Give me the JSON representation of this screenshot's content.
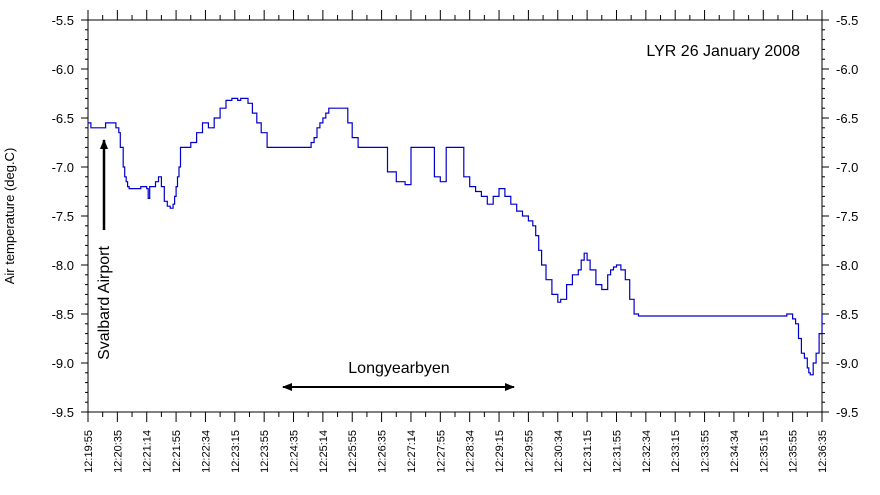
{
  "chart_data": {
    "type": "line",
    "title": "LYR 26 January 2008",
    "ylabel": "Air temperature (deg.C)",
    "xlabel": "",
    "ylim": [
      -9.5,
      -5.5
    ],
    "y_ticks": [
      "-5.5",
      "-6.0",
      "-6.5",
      "-7.0",
      "-7.5",
      "-8.0",
      "-8.5",
      "-9.0",
      "-9.5"
    ],
    "x_tick_labels": [
      "12:19:55",
      "12:20:35",
      "12:21:14",
      "12:21:55",
      "12:22:34",
      "12:23:15",
      "12:23:55",
      "12:24:35",
      "12:25:14",
      "12:25:55",
      "12:26:35",
      "12:27:14",
      "12:27:55",
      "12:28:34",
      "12:29:15",
      "12:29:55",
      "12:30:34",
      "12:31:15",
      "12:31:55",
      "12:32:34",
      "12:33:15",
      "12:33:55",
      "12:34:34",
      "12:35:15",
      "12:35:55",
      "12:36:35"
    ],
    "grid": false,
    "series": [
      {
        "color": "#0000cc",
        "x": [
          0.0,
          0.05,
          0.1,
          0.25,
          0.4,
          0.6,
          0.75,
          0.85,
          0.95,
          1.05,
          1.1,
          1.15,
          1.2,
          1.25,
          1.3,
          1.35,
          1.4,
          1.5,
          1.6,
          1.7,
          1.8,
          1.9,
          2.0,
          2.05,
          2.1,
          2.2,
          2.3,
          2.4,
          2.5,
          2.6,
          2.7,
          2.8,
          2.9,
          2.95,
          3.0,
          3.05,
          3.1,
          3.15,
          3.2,
          3.25,
          3.35,
          3.5,
          3.7,
          3.9,
          4.1,
          4.3,
          4.5,
          4.7,
          4.9,
          5.0,
          5.1,
          5.2,
          5.3,
          5.45,
          5.6,
          5.75,
          5.9,
          6.1,
          6.3,
          6.5,
          6.7,
          6.9,
          7.1,
          7.25,
          7.4,
          7.5,
          7.6,
          7.7,
          7.8,
          7.9,
          8.0,
          8.1,
          8.2,
          8.3,
          8.4,
          8.55,
          8.7,
          8.85,
          9.0,
          9.2,
          9.4,
          9.6,
          9.8,
          10.0,
          10.1,
          10.2,
          10.5,
          10.8,
          11.0,
          11.2,
          11.4,
          11.6,
          11.8,
          12.0,
          12.2,
          12.4,
          12.6,
          12.8,
          13.0,
          13.2,
          13.4,
          13.6,
          13.8,
          14.0,
          14.2,
          14.4,
          14.6,
          14.8,
          15.0,
          15.15,
          15.25,
          15.35,
          15.45,
          15.6,
          15.8,
          16.0,
          16.1,
          16.3,
          16.5,
          16.7,
          16.8,
          16.9,
          17.0,
          17.1,
          17.3,
          17.5,
          17.7,
          17.8,
          17.9,
          18.0,
          18.15,
          18.3,
          18.45,
          18.6,
          18.75,
          18.9,
          19.0,
          19.1,
          19.25,
          19.4,
          19.55,
          19.7,
          19.85,
          20.0,
          20.1,
          20.2,
          20.3,
          20.4,
          20.5,
          20.6,
          20.7,
          20.8,
          20.9,
          21.0,
          21.1,
          21.2,
          21.3,
          21.4,
          21.5,
          21.6,
          21.7,
          21.8,
          21.9,
          22.0,
          22.1,
          22.2,
          22.3,
          22.4,
          22.5,
          22.6,
          22.7,
          22.8,
          22.9,
          23.0,
          23.2,
          23.4,
          23.6,
          23.8,
          24.0,
          24.1,
          24.2,
          24.3,
          24.4,
          24.5,
          24.55,
          24.6,
          24.7,
          24.8,
          24.9,
          25.0
        ],
        "y": [
          -6.55,
          -6.55,
          -6.6,
          -6.6,
          -6.6,
          -6.55,
          -6.55,
          -6.55,
          -6.6,
          -6.65,
          -6.8,
          -6.8,
          -7.0,
          -7.1,
          -7.15,
          -7.2,
          -7.22,
          -7.22,
          -7.22,
          -7.22,
          -7.2,
          -7.2,
          -7.22,
          -7.32,
          -7.2,
          -7.2,
          -7.15,
          -7.1,
          -7.2,
          -7.35,
          -7.4,
          -7.42,
          -7.38,
          -7.3,
          -7.2,
          -7.1,
          -7.0,
          -6.8,
          -6.8,
          -6.8,
          -6.8,
          -6.75,
          -6.65,
          -6.55,
          -6.6,
          -6.5,
          -6.4,
          -6.32,
          -6.3,
          -6.3,
          -6.32,
          -6.3,
          -6.3,
          -6.35,
          -6.45,
          -6.55,
          -6.65,
          -6.8,
          -6.8,
          -6.8,
          -6.8,
          -6.8,
          -6.8,
          -6.8,
          -6.8,
          -6.8,
          -6.75,
          -6.7,
          -6.6,
          -6.55,
          -6.5,
          -6.45,
          -6.4,
          -6.4,
          -6.4,
          -6.4,
          -6.4,
          -6.55,
          -6.7,
          -6.8,
          -6.8,
          -6.8,
          -6.8,
          -6.8,
          -6.8,
          -7.05,
          -7.15,
          -7.18,
          -6.8,
          -6.8,
          -6.8,
          -6.8,
          -7.1,
          -7.15,
          -6.8,
          -6.8,
          -6.8,
          -7.1,
          -7.2,
          -7.25,
          -7.3,
          -7.38,
          -7.3,
          -7.22,
          -7.3,
          -7.38,
          -7.45,
          -7.5,
          -7.55,
          -7.6,
          -7.7,
          -7.85,
          -8.0,
          -8.15,
          -8.3,
          -8.38,
          -8.35,
          -8.2,
          -8.1,
          -8.05,
          -7.95,
          -7.88,
          -7.95,
          -8.05,
          -8.2,
          -8.25,
          -8.1,
          -8.05,
          -8.02,
          -8.0,
          -8.05,
          -8.15,
          -8.35,
          -8.5,
          -8.52,
          -8.52,
          -8.52,
          -8.52,
          -8.52,
          -8.52,
          -8.52,
          -8.52,
          -8.52,
          -8.52,
          -8.52,
          -8.52,
          -8.52,
          -8.52,
          -8.52,
          -8.52,
          -8.52,
          -8.52,
          -8.52,
          -8.52,
          -8.52,
          -8.52,
          -8.52,
          -8.52,
          -8.52,
          -8.52,
          -8.52,
          -8.52,
          -8.52,
          -8.52,
          -8.52,
          -8.52,
          -8.52,
          -8.52,
          -8.52,
          -8.52,
          -8.52,
          -8.52,
          -8.52,
          -8.52,
          -8.52,
          -8.52,
          -8.52,
          -8.5,
          -8.55,
          -8.6,
          -8.75,
          -8.9,
          -8.95,
          -9.05,
          -9.1,
          -9.12,
          -9.0,
          -8.9,
          -8.7,
          -8.5
        ]
      }
    ]
  },
  "annotations": {
    "svalbard_label": "Svalbard Airport",
    "longyearbyen_label": "Longyearbyen"
  }
}
